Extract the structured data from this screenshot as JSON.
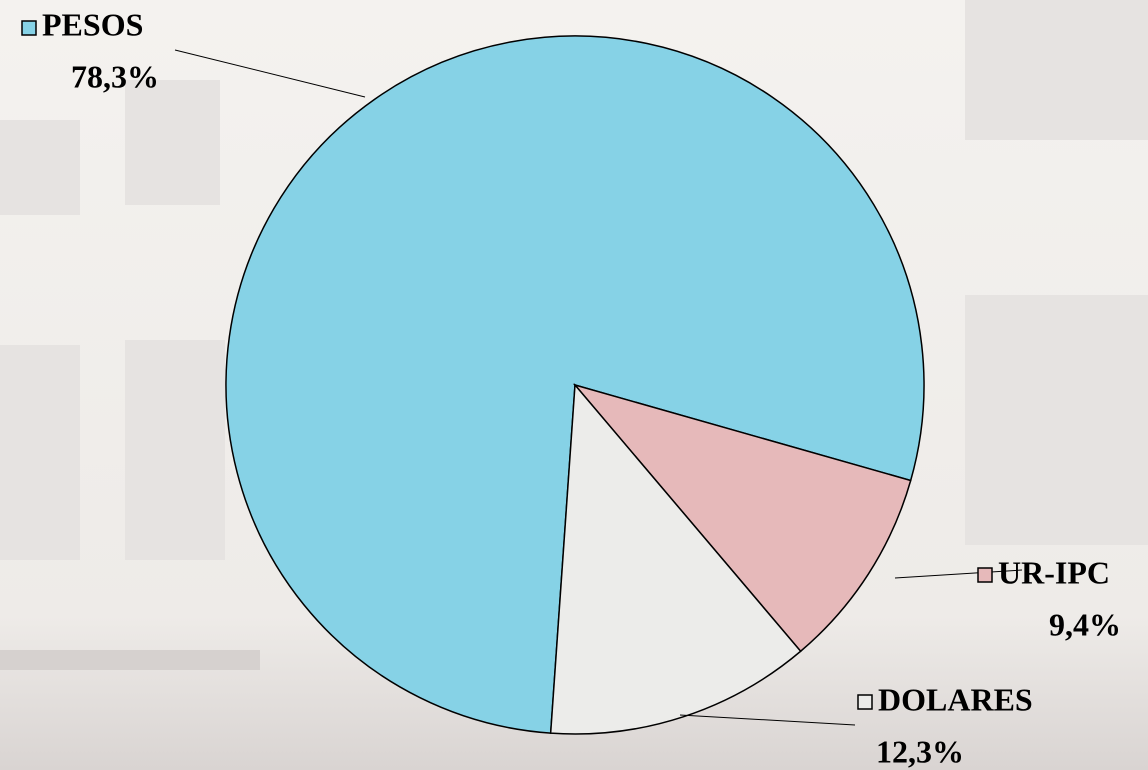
{
  "chart_data": {
    "type": "pie",
    "categories": [
      "PESOS",
      "UR-IPC",
      "DOLARES"
    ],
    "values": [
      78.3,
      9.4,
      12.3
    ],
    "value_labels": [
      "78,3%",
      "9,4%",
      "12,3%"
    ],
    "colors": [
      "#86d2e6",
      "#e6b9ba",
      "#ececea"
    ]
  }
}
